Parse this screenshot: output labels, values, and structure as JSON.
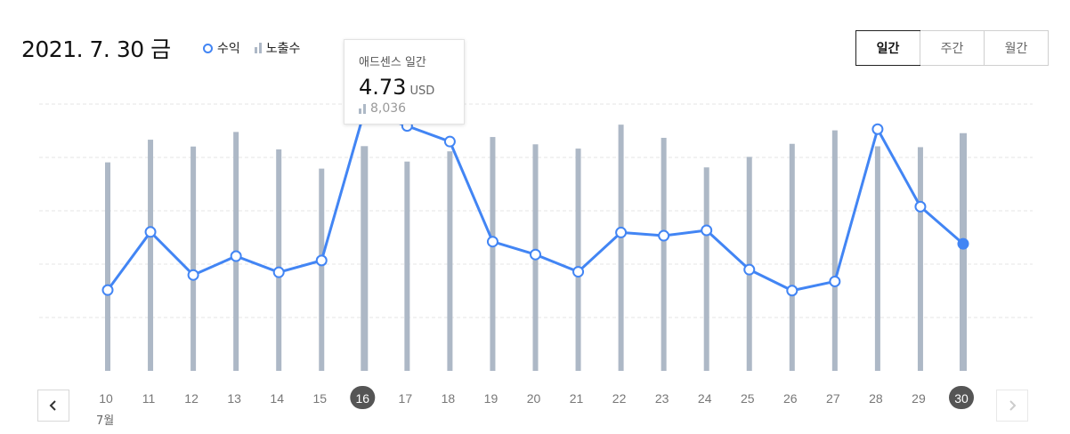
{
  "header": {
    "date": "2021. 7. 30 금"
  },
  "legend": {
    "revenue_label": "수익",
    "impressions_label": "노출수"
  },
  "period_tabs": [
    {
      "label": "일간",
      "active": true
    },
    {
      "label": "주간",
      "active": false
    },
    {
      "label": "월간",
      "active": false
    }
  ],
  "tooltip": {
    "title": "애드센스 일간",
    "value": "4.73",
    "unit": "USD",
    "impressions": "8,036"
  },
  "x_axis": {
    "month_label": "7월"
  },
  "colors": {
    "line": "#4285f4",
    "bar": "#adb8c6",
    "selected_day_badge": "#555555"
  },
  "icons": {
    "prev": "chevron-left-icon",
    "next": "chevron-right-icon"
  },
  "chart_data": {
    "type": "bar+line",
    "categories": [
      "10",
      "11",
      "12",
      "13",
      "14",
      "15",
      "16",
      "17",
      "18",
      "19",
      "20",
      "21",
      "22",
      "23",
      "24",
      "25",
      "26",
      "27",
      "28",
      "29",
      "30"
    ],
    "series": [
      {
        "name": "노출수",
        "type": "bar",
        "values": [
          7455,
          8266,
          8022,
          8543,
          7919,
          7232,
          8036,
          7484,
          7850,
          8362,
          8101,
          7948,
          8804,
          8333,
          7276,
          7652,
          8118,
          8600,
          8030,
          8000,
          8500
        ]
      },
      {
        "name": "수익",
        "type": "line",
        "values": [
          1.41,
          2.49,
          1.69,
          2.04,
          1.74,
          1.96,
          4.73,
          4.46,
          4.17,
          2.31,
          2.07,
          1.75,
          2.48,
          2.42,
          2.52,
          1.79,
          1.4,
          1.57,
          4.4,
          2.96,
          2.27
        ]
      }
    ],
    "selected_index": 6,
    "highlighted_index": 20,
    "grid": true,
    "legend_position": "top-left"
  }
}
